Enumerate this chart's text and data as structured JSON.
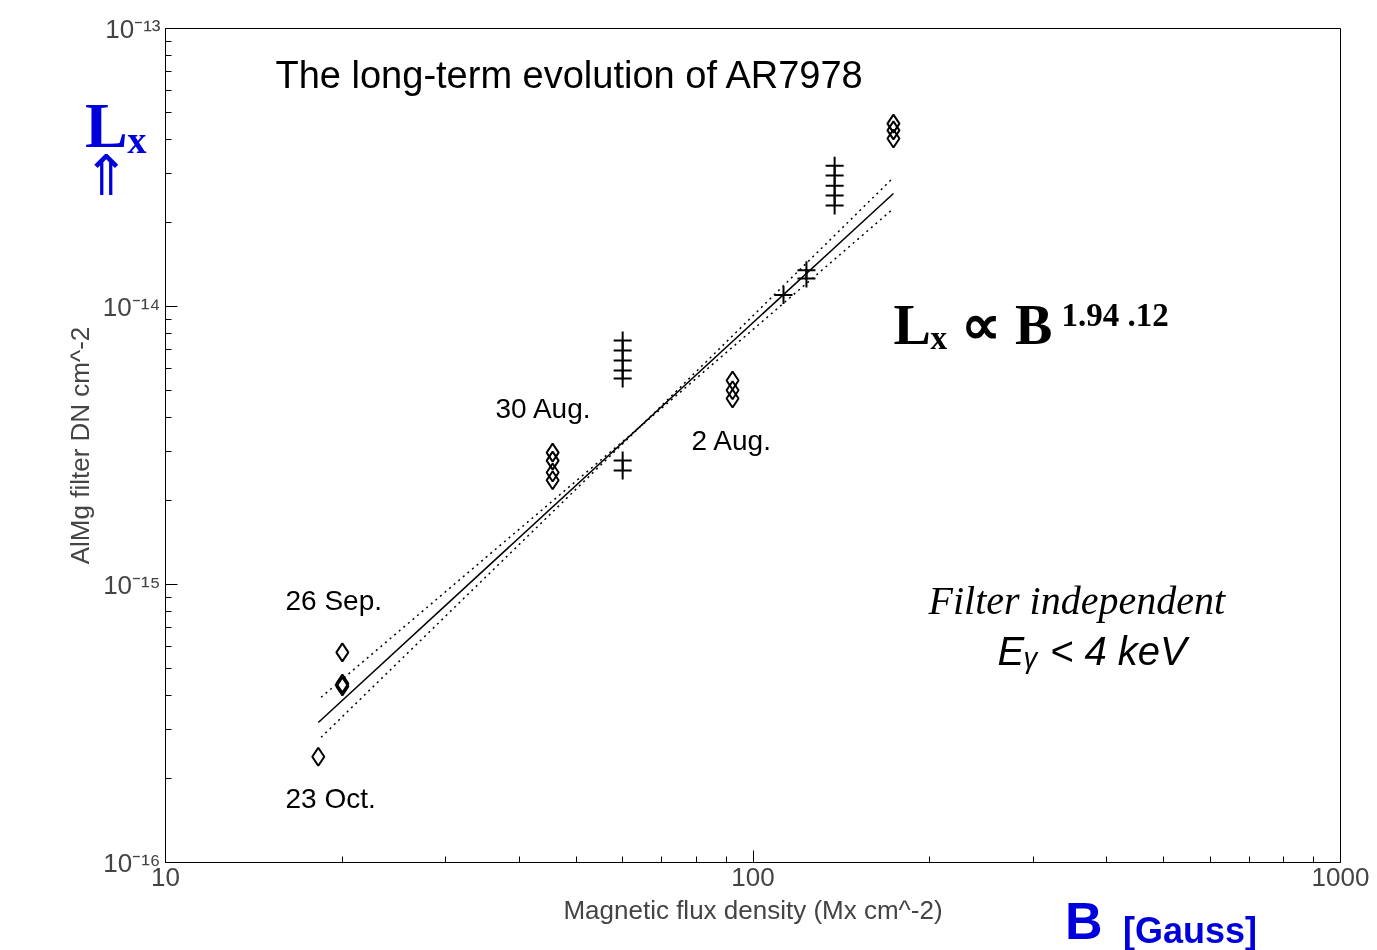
{
  "chart_data": {
    "type": "scatter",
    "title": "The long-term evolution of AR7978",
    "xlabel": "Magnetic flux density (Mx cm^-2)",
    "ylabel": "AlMg filter DN cm^-2",
    "log": "xy",
    "grid": false,
    "xlim": [
      10,
      1000
    ],
    "xticks": [
      10,
      100,
      1000
    ],
    "ylim": [
      1e-16,
      1e-13
    ],
    "yticks": [
      {
        "value": 1e-16,
        "label": "10⁻¹⁶"
      },
      {
        "value": 1e-15,
        "label": "10⁻¹⁵"
      },
      {
        "value": 1e-14,
        "label": "10⁻¹⁴"
      },
      {
        "value": 1e-13,
        "label": "10⁻¹³"
      }
    ],
    "series": [
      {
        "marker": "diamond",
        "color": "#000000",
        "x": [
          18.2,
          20,
          20,
          20,
          45.6,
          45.6,
          45.6,
          45.6,
          92.3,
          92.3,
          92.3,
          173.4,
          173.4,
          173.4
        ],
        "values": [
          2.4e-16,
          5.7e-16,
          4.4e-16,
          4.3e-16,
          2.98e-15,
          2.79e-15,
          2.53e-15,
          2.37e-15,
          5.42e-15,
          5e-15,
          4.67e-15,
          4.55e-14,
          4.3e-14,
          4.02e-14
        ]
      },
      {
        "marker": "cross",
        "color": "#000000",
        "x": [
          60,
          60,
          60,
          60,
          60,
          60,
          60,
          112.7,
          123.3,
          123.3,
          137.7,
          137.7,
          137.7,
          137.7,
          137.7
        ],
        "values": [
          7.55e-15,
          6.95e-15,
          6.4e-15,
          5.89e-15,
          5.51e-15,
          2.79e-15,
          2.57e-15,
          1.1e-14,
          1.35e-14,
          1.26e-14,
          3.21e-14,
          2.96e-14,
          2.72e-14,
          2.51e-14,
          2.31e-14
        ]
      },
      {
        "type": "line",
        "marker": "none",
        "line_style": "solid",
        "color": "#000000",
        "x": [
          18.2,
          173.4
        ],
        "values": [
          3.19e-16,
          2.55e-14
        ]
      },
      {
        "type": "line",
        "marker": "none",
        "line_style": "dotted",
        "color": "#000000",
        "x": [
          18.4,
          64.3,
          173.4
        ],
        "values": [
          3.93e-16,
          3.7e-15,
          2.91e-14
        ]
      },
      {
        "type": "line",
        "marker": "none",
        "line_style": "dotted",
        "color": "#000000",
        "x": [
          18.4,
          64.3,
          173.4
        ],
        "values": [
          2.82e-16,
          3.7e-15,
          2.25e-14
        ]
      }
    ],
    "annotations": [
      "26 Sep.",
      "23 Oct.",
      "30 Aug.",
      "2 Aug.",
      "Lₓ ∝ B$^{1.94  .12}$",
      "Filter independent",
      "Eᵧ < 4 keV",
      "Lₓ",
      "⇑",
      "B",
      "[Gauss]"
    ]
  }
}
